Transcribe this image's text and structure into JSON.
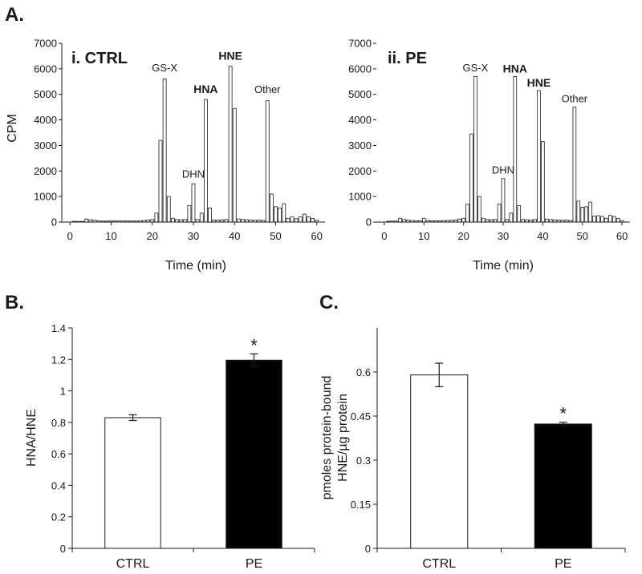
{
  "panel_letters": {
    "a": "A.",
    "b": "B.",
    "c": "C."
  },
  "colors": {
    "ink": "#1a1a1a",
    "hist_fill": "#ffffff",
    "bar_ctrl": "#ffffff",
    "bar_pe": "#000000"
  },
  "chart_data": [
    {
      "id": "ctrl",
      "type": "bar",
      "title": "i. CTRL",
      "xlabel": "Time (min)",
      "ylabel": "CPM",
      "xlim": [
        -2,
        62
      ],
      "ylim": [
        0,
        7000
      ],
      "xticks": [
        0,
        10,
        20,
        30,
        40,
        50,
        60
      ],
      "yticks": [
        0,
        1000,
        2000,
        3000,
        4000,
        5000,
        6000,
        7000
      ],
      "x": [
        1,
        2,
        3,
        4,
        5,
        6,
        7,
        8,
        9,
        10,
        11,
        12,
        13,
        14,
        15,
        16,
        17,
        18,
        19,
        20,
        21,
        22,
        23,
        24,
        25,
        26,
        27,
        28,
        29,
        30,
        31,
        32,
        33,
        34,
        35,
        36,
        37,
        38,
        39,
        40,
        41,
        42,
        43,
        44,
        45,
        46,
        47,
        48,
        49,
        50,
        51,
        52,
        53,
        54,
        55,
        56,
        57,
        58,
        59,
        60
      ],
      "values": [
        30,
        0,
        0,
        120,
        90,
        70,
        50,
        40,
        40,
        40,
        50,
        40,
        40,
        50,
        40,
        40,
        50,
        60,
        80,
        100,
        350,
        3200,
        5600,
        1000,
        150,
        100,
        90,
        100,
        650,
        1500,
        100,
        350,
        4800,
        550,
        80,
        80,
        90,
        100,
        6100,
        4450,
        120,
        100,
        90,
        80,
        70,
        80,
        60,
        4750,
        1100,
        600,
        550,
        720,
        150,
        200,
        130,
        200,
        310,
        200,
        140,
        70
      ],
      "annotations": [
        {
          "text": "GS-X",
          "x": 23,
          "y": 5900,
          "bold": false
        },
        {
          "text": "DHN",
          "x": 30,
          "y": 1750,
          "bold": false
        },
        {
          "text": "HNA",
          "x": 33,
          "y": 5050,
          "bold": true
        },
        {
          "text": "HNE",
          "x": 39,
          "y": 6350,
          "bold": true
        },
        {
          "text": "Other",
          "x": 48,
          "y": 5050,
          "bold": false
        }
      ]
    },
    {
      "id": "pe",
      "type": "bar",
      "title": "ii. PE",
      "xlabel": "Time (min)",
      "ylabel": "",
      "xlim": [
        -2,
        62
      ],
      "ylim": [
        0,
        7000
      ],
      "xticks": [
        0,
        10,
        20,
        30,
        40,
        50,
        60
      ],
      "yticks": [
        0,
        1000,
        2000,
        3000,
        4000,
        5000,
        6000,
        7000
      ],
      "x": [
        1,
        2,
        3,
        4,
        5,
        6,
        7,
        8,
        9,
        10,
        11,
        12,
        13,
        14,
        15,
        16,
        17,
        18,
        19,
        20,
        21,
        22,
        23,
        24,
        25,
        26,
        27,
        28,
        29,
        30,
        31,
        32,
        33,
        34,
        35,
        36,
        37,
        38,
        39,
        40,
        41,
        42,
        43,
        44,
        45,
        46,
        47,
        48,
        49,
        50,
        51,
        52,
        53,
        54,
        55,
        56,
        57,
        58,
        59,
        60
      ],
      "values": [
        30,
        40,
        40,
        150,
        100,
        80,
        60,
        50,
        50,
        150,
        60,
        50,
        50,
        50,
        60,
        60,
        70,
        80,
        120,
        150,
        700,
        3450,
        5700,
        1000,
        150,
        100,
        90,
        100,
        700,
        1700,
        100,
        350,
        5700,
        650,
        100,
        90,
        80,
        100,
        5150,
        3150,
        120,
        100,
        90,
        80,
        70,
        80,
        60,
        4500,
        820,
        580,
        600,
        780,
        230,
        250,
        220,
        150,
        260,
        220,
        140,
        60
      ],
      "annotations": [
        {
          "text": "GS-X",
          "x": 23,
          "y": 5900,
          "bold": false
        },
        {
          "text": "DHN",
          "x": 30,
          "y": 1900,
          "bold": false
        },
        {
          "text": "HNA",
          "x": 33,
          "y": 5850,
          "bold": true
        },
        {
          "text": "HNE",
          "x": 39,
          "y": 5300,
          "bold": true
        },
        {
          "text": "Other",
          "x": 48,
          "y": 4700,
          "bold": false
        }
      ]
    },
    {
      "id": "ratio",
      "type": "bar",
      "title": "",
      "xlabel": "",
      "ylabel": "HNA/HNE",
      "categories": [
        "CTRL",
        "PE"
      ],
      "values": [
        0.83,
        1.195
      ],
      "errors": [
        0.018,
        0.04
      ],
      "significance": [
        "",
        "*"
      ],
      "ylim": [
        0,
        1.4
      ],
      "yticks": [
        "0",
        "0.2",
        "0.4",
        "0.6",
        "0.8",
        "1",
        "1.2",
        "1.4"
      ]
    },
    {
      "id": "bound",
      "type": "bar",
      "title": "",
      "xlabel": "",
      "ylabel_lines": [
        "pmoles protein-bound",
        "HNE/µg protein"
      ],
      "categories": [
        "CTRL",
        "PE"
      ],
      "values": [
        0.59,
        0.423
      ],
      "errors": [
        0.04,
        0.006
      ],
      "significance": [
        "",
        "*"
      ],
      "ylim": [
        0,
        0.75
      ],
      "yticks": [
        "0",
        "0.15",
        "0.3",
        "0.45",
        "0.6"
      ]
    }
  ]
}
